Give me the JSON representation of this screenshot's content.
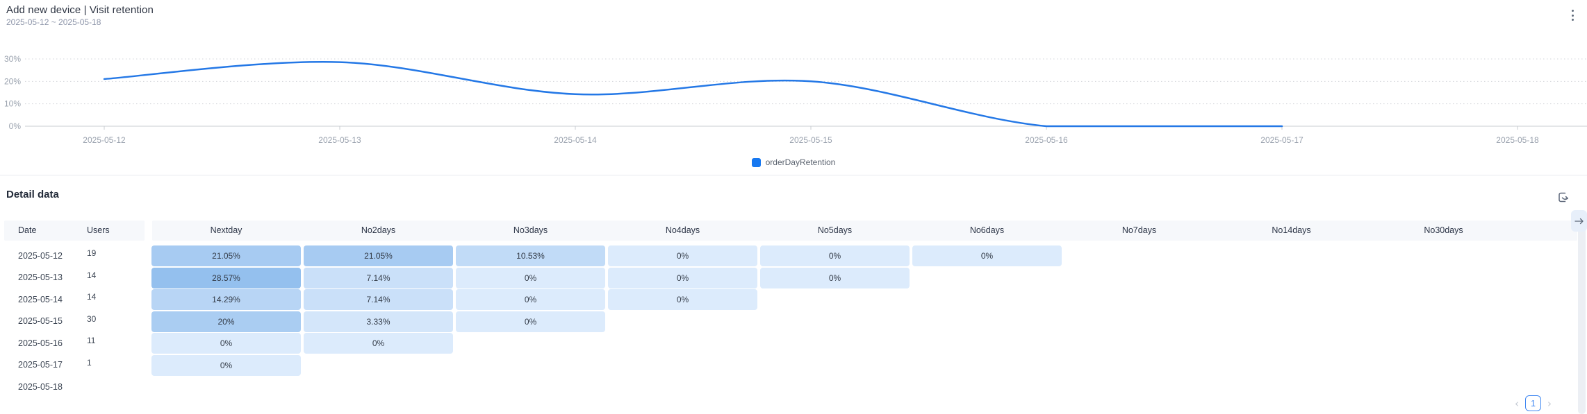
{
  "header": {
    "title": "Add new device | Visit retention",
    "date_range": "2025-05-12 ~ 2025-05-18"
  },
  "chart_data": {
    "type": "line",
    "smooth": true,
    "categories": [
      "2025-05-12",
      "2025-05-13",
      "2025-05-14",
      "2025-05-15",
      "2025-05-16",
      "2025-05-17",
      "2025-05-18"
    ],
    "series": [
      {
        "name": "orderDayRetention",
        "values": [
          21.05,
          28.57,
          14.29,
          20,
          0,
          0,
          null
        ]
      }
    ],
    "ylim": [
      0,
      30
    ],
    "yticks": [
      "0%",
      "10%",
      "20%",
      "30%"
    ],
    "grid": "dotted-horizontal",
    "legend": [
      "orderDayRetention"
    ],
    "legend_position": "bottom-center",
    "colors": {
      "line": "#2478e6",
      "legend_marker": "#1778f0",
      "axis": "#c9ccd2",
      "grid": "#d2d5da",
      "tick_label": "#9aa2ae"
    }
  },
  "detail": {
    "title": "Detail data",
    "table": {
      "columns": [
        "Date",
        "Users",
        "Nextday",
        "No2days",
        "No3days",
        "No4days",
        "No5days",
        "No6days",
        "No7days",
        "No14days",
        "No30days"
      ],
      "rows": [
        {
          "date": "2025-05-12",
          "users": "19",
          "cells": [
            "21.05%",
            "21.05%",
            "10.53%",
            "0%",
            "0%",
            "0%"
          ]
        },
        {
          "date": "2025-05-13",
          "users": "14",
          "cells": [
            "28.57%",
            "7.14%",
            "0%",
            "0%",
            "0%"
          ]
        },
        {
          "date": "2025-05-14",
          "users": "14",
          "cells": [
            "14.29%",
            "7.14%",
            "0%",
            "0%"
          ]
        },
        {
          "date": "2025-05-15",
          "users": "30",
          "cells": [
            "20%",
            "3.33%",
            "0%"
          ]
        },
        {
          "date": "2025-05-16",
          "users": "11",
          "cells": [
            "0%",
            "0%"
          ]
        },
        {
          "date": "2025-05-17",
          "users": "1",
          "cells": [
            "0%"
          ]
        },
        {
          "date": "2025-05-18",
          "users": "",
          "cells": []
        }
      ],
      "cell_color_scale": {
        "zero": "#dcebfc",
        "max": "#94c0ee",
        "max_value": 28.57
      }
    },
    "pagination": {
      "prev": "‹",
      "current": "1",
      "next": "›"
    }
  }
}
